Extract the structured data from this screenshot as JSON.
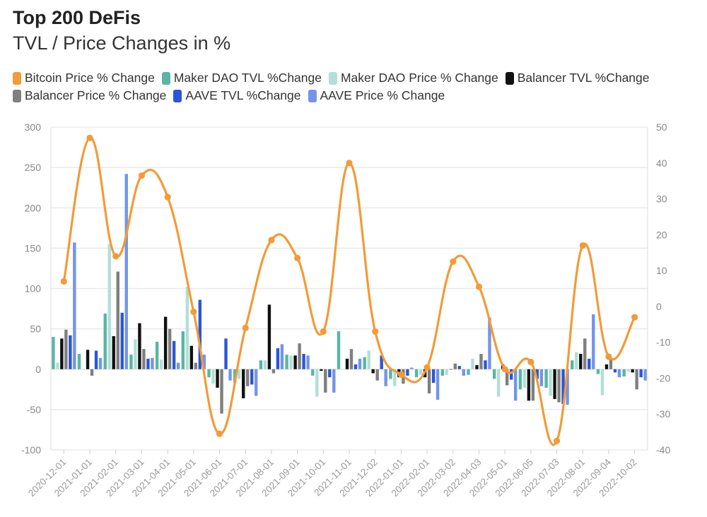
{
  "chart_data": {
    "type": "bar",
    "title": "Top 200 DeFis",
    "subtitle": "TVL / Price Changes in %",
    "categories": [
      "2020-12-01",
      "2021-01-01",
      "2021-02-01",
      "2021-03-01",
      "2021-04-01",
      "2021-05-01",
      "2021-06-01",
      "2021-07-01",
      "2021-08-01",
      "2021-09-01",
      "2021-10-01",
      "2021-11-01",
      "2021-12-02",
      "2022-01-01",
      "2022-02-01",
      "2022-03-02",
      "2022-04-03",
      "2022-05-01",
      "2022-06-05",
      "2022-07-03",
      "2022-08-01",
      "2022-09-04",
      "2022-10-02"
    ],
    "left_axis": {
      "min": -100,
      "max": 300,
      "ticks": [
        "-100",
        "-50",
        "0",
        "50",
        "100",
        "150",
        "200",
        "250",
        "300"
      ]
    },
    "right_axis": {
      "min": -40,
      "max": 50,
      "ticks": [
        "-40",
        "-30",
        "-20",
        "-10",
        "0",
        "10",
        "20",
        "30",
        "40",
        "50"
      ]
    },
    "grid": true,
    "legend_position": "top-left",
    "bar_series": [
      {
        "name": "Maker DAO TVL %Change",
        "color": "#5ab5a3",
        "values": [
          40,
          19,
          69,
          18,
          34,
          47,
          -10,
          -17,
          11,
          18,
          -8,
          47,
          15,
          -12,
          -10,
          -8,
          -7,
          -12,
          -25,
          -23,
          11,
          -6,
          -9
        ]
      },
      {
        "name": "Maker DAO Price % Change",
        "color": "#b2dfd8",
        "values": [
          8,
          0,
          155,
          37,
          12,
          102,
          -18,
          -12,
          11,
          17,
          -34,
          0,
          23,
          -21,
          -7,
          -7,
          13,
          -34,
          -23,
          -33,
          21,
          -32,
          -3
        ]
      },
      {
        "name": "Balancer TVL %Change",
        "color": "#111111",
        "values": [
          38,
          24,
          41,
          57,
          65,
          29,
          -23,
          -36,
          80,
          17,
          -2,
          13,
          -5,
          -10,
          -10,
          0,
          5,
          6,
          -39,
          -37,
          19,
          6,
          -4
        ]
      },
      {
        "name": "Balancer Price % Change",
        "color": "#7f7f7f",
        "values": [
          49,
          -8,
          121,
          25,
          50,
          8,
          -55,
          -21,
          -5,
          32,
          -29,
          25,
          -14,
          -18,
          -30,
          7,
          19,
          -20,
          -39,
          -41,
          38,
          14,
          -25
        ]
      },
      {
        "name": "AAVE TVL %Change",
        "color": "#2c56d6",
        "values": [
          42,
          23,
          70,
          13,
          35,
          86,
          38,
          -19,
          26,
          19,
          -10,
          6,
          17,
          -8,
          -17,
          4,
          11,
          -13,
          -12,
          -43,
          13,
          -4,
          -10
        ]
      },
      {
        "name": "AAVE Price % Change",
        "color": "#7395e8",
        "values": [
          157,
          14,
          242,
          14,
          8,
          18,
          -14,
          -33,
          31,
          17,
          -29,
          13,
          -21,
          2,
          -38,
          -8,
          64,
          -39,
          -21,
          -44,
          68,
          -10,
          -14
        ]
      }
    ],
    "line_series": {
      "name": "Bitcoin Price % Change",
      "color": "#f29b38",
      "axis": "right",
      "values": [
        7,
        47,
        14,
        36.5,
        30.5,
        -1.5,
        -35.5,
        -6,
        18.5,
        13.5,
        -7,
        40,
        -7,
        -19,
        -17,
        12.5,
        5.5,
        -17.5,
        -15.5,
        -37.5,
        17,
        -14,
        -3
      ]
    }
  }
}
